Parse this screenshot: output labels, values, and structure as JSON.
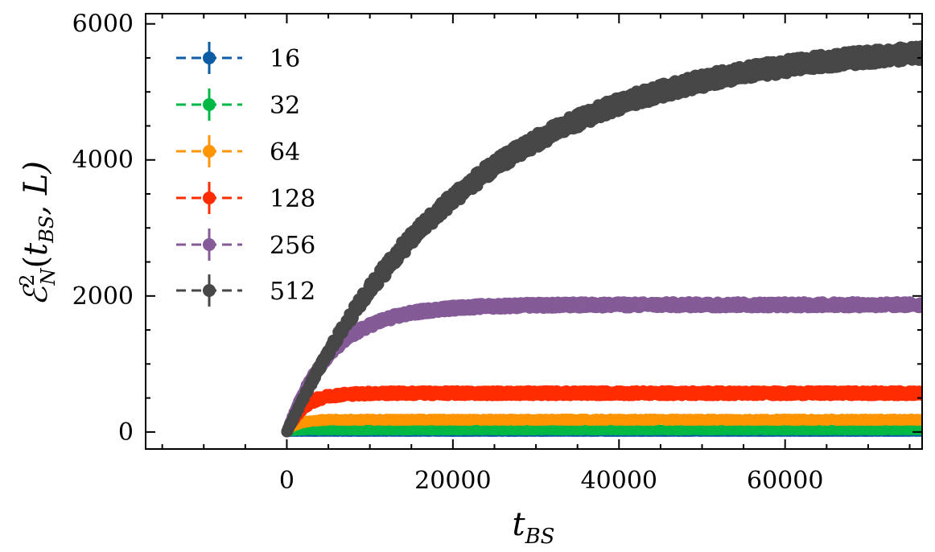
{
  "chart_data": {
    "type": "line",
    "title": "",
    "xlabel": "t_BS",
    "ylabel": "E_N^2(t_BS, L)",
    "xlabel_parts": {
      "main": "t",
      "sub": "BS"
    },
    "ylabel_parts": {
      "main": "ℰ",
      "sup": "2",
      "sub": "N",
      "args_open": "(",
      "arg_main": "t",
      "arg_sub": "BS",
      "arg_rest": ", L)"
    },
    "xlim": [
      -17000,
      76500
    ],
    "ylim": [
      -250,
      6150
    ],
    "xticks": [
      0,
      20000,
      40000,
      60000
    ],
    "xtick_labels": [
      "0",
      "20000",
      "40000",
      "60000"
    ],
    "yticks": [
      0,
      2000,
      4000,
      6000
    ],
    "ytick_labels": [
      "0",
      "2000",
      "4000",
      "6000"
    ],
    "legend_position": "upper-left",
    "series": [
      {
        "name": "16",
        "color": "#0C5DA5",
        "plateau": 3,
        "tau": 300,
        "noise": 2
      },
      {
        "name": "32",
        "color": "#00B945",
        "plateau": 30,
        "tau": 700,
        "noise": 8
      },
      {
        "name": "64",
        "color": "#FF9500",
        "plateau": 180,
        "tau": 1200,
        "noise": 20
      },
      {
        "name": "128",
        "color": "#FF2C00",
        "plateau": 570,
        "tau": 2000,
        "noise": 35
      },
      {
        "name": "256",
        "color": "#845B97",
        "plateau": 1870,
        "tau": 5500,
        "noise": 45
      },
      {
        "name": "512",
        "color": "#474747",
        "plateau": 5750,
        "tau": 22000,
        "noise": 110
      }
    ],
    "x_max_data": 76500
  }
}
